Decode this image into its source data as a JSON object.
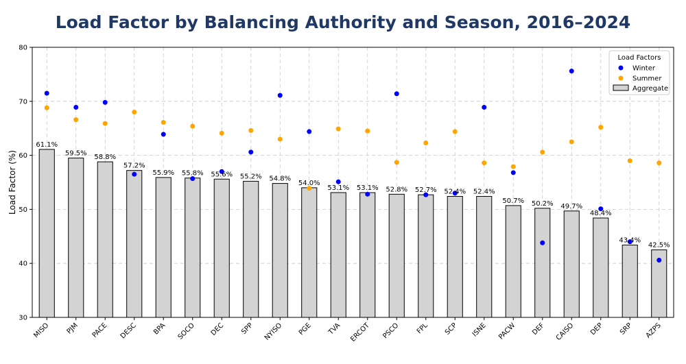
{
  "chart_data": {
    "type": "bar",
    "title": "Load Factor by Balancing Authority and Season, 2016–2024",
    "xlabel": "",
    "ylabel": "Load Factor (%)",
    "ylim": [
      30,
      80
    ],
    "yticks": [
      30,
      40,
      50,
      60,
      70,
      80
    ],
    "grid": true,
    "legend_position": "top-right",
    "legend_title": "Load Factors",
    "categories": [
      "MISO",
      "PJM",
      "PACE",
      "DESC",
      "BPA",
      "SOCO",
      "DEC",
      "SPP",
      "NYISO",
      "PGE",
      "TVA",
      "ERCOT",
      "PSCO",
      "FPL",
      "SCP",
      "ISNE",
      "PACW",
      "DEF",
      "CAISO",
      "DEP",
      "SRP",
      "AZPS"
    ],
    "series": [
      {
        "name": "Aggregate",
        "kind": "bar",
        "color": "#d3d3d3",
        "values": [
          61.1,
          59.5,
          58.8,
          57.2,
          55.9,
          55.8,
          55.6,
          55.2,
          54.8,
          54.0,
          53.1,
          53.1,
          52.8,
          52.7,
          52.4,
          52.4,
          50.7,
          50.2,
          49.7,
          48.4,
          43.4,
          42.5
        ]
      },
      {
        "name": "Winter",
        "kind": "scatter",
        "color": "#0000ff",
        "values": [
          71.5,
          68.9,
          69.8,
          56.5,
          63.9,
          55.7,
          57.0,
          60.6,
          71.1,
          64.4,
          55.1,
          52.8,
          71.4,
          52.7,
          53.0,
          68.9,
          56.8,
          43.8,
          75.6,
          50.1,
          44.0,
          40.6
        ]
      },
      {
        "name": "Summer",
        "kind": "scatter",
        "color": "#ffa500",
        "values": [
          68.8,
          66.6,
          65.9,
          68.0,
          66.1,
          65.4,
          64.1,
          64.6,
          63.0,
          53.9,
          64.9,
          64.5,
          58.7,
          62.3,
          64.4,
          58.6,
          57.9,
          60.6,
          62.5,
          65.2,
          59.0,
          58.6
        ]
      }
    ],
    "bar_labels": [
      "61.1%",
      "59.5%",
      "58.8%",
      "57.2%",
      "55.9%",
      "55.8%",
      "55.6%",
      "55.2%",
      "54.8%",
      "54.0%",
      "53.1%",
      "53.1%",
      "52.8%",
      "52.7%",
      "52.4%",
      "52.4%",
      "50.7%",
      "50.2%",
      "49.7%",
      "48.4%",
      "43.4%",
      "42.5%"
    ]
  }
}
